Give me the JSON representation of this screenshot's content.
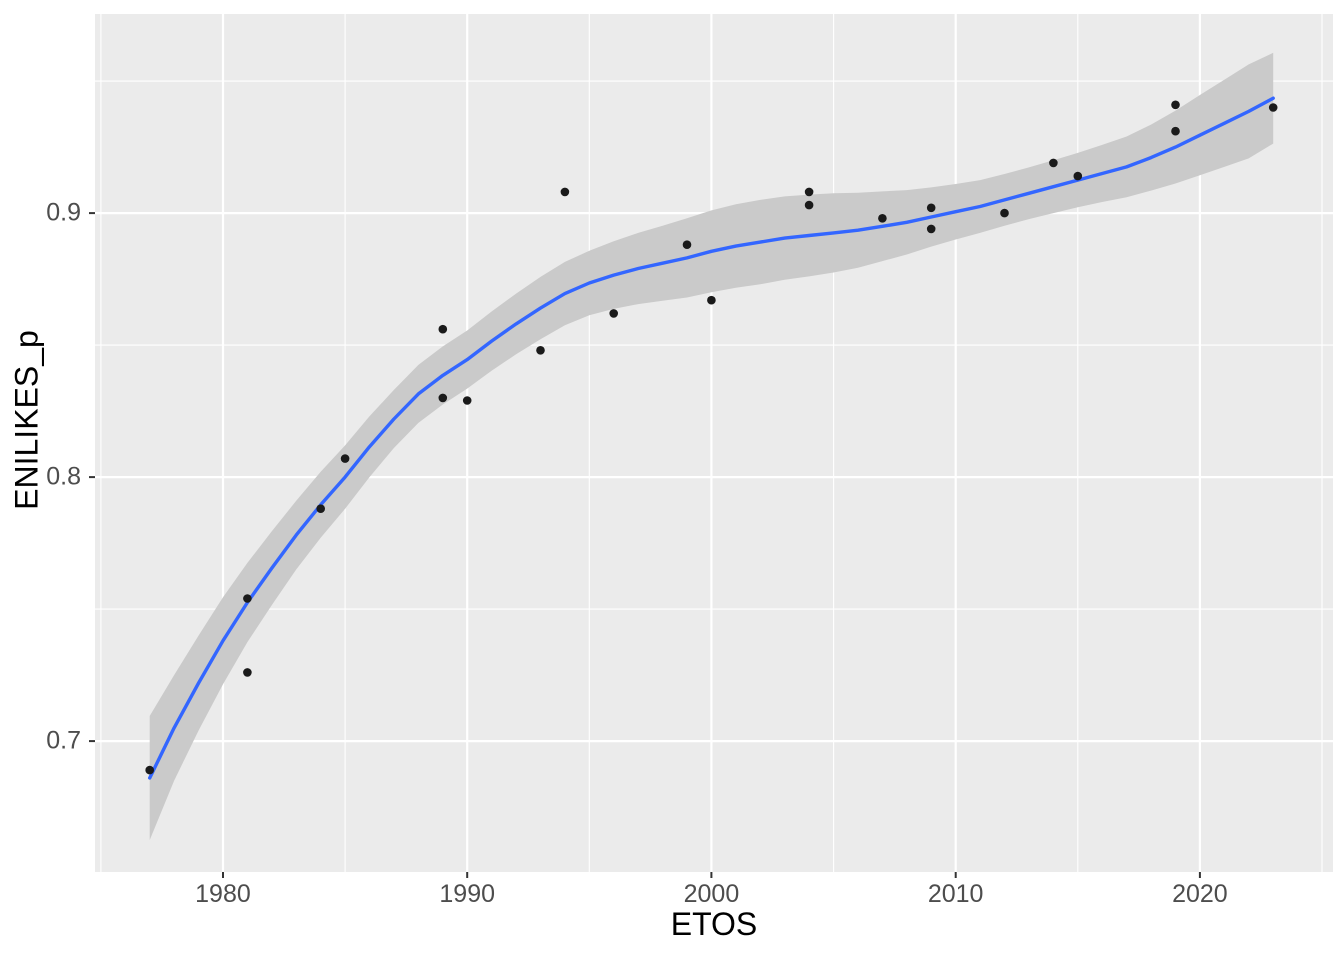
{
  "chart_data": {
    "type": "scatter",
    "title": "",
    "xlabel": "ETOS",
    "ylabel": "ENILIKES_p",
    "xlim": [
      1974.76,
      2025.45
    ],
    "ylim": [
      0.6504,
      0.9754
    ],
    "grid": true,
    "legend": false,
    "x_ticks": [
      1980,
      1990,
      2000,
      2010,
      2020
    ],
    "x_tick_labels": [
      "1980",
      "1990",
      "2000",
      "2010",
      "2020"
    ],
    "y_ticks": [
      0.7,
      0.8,
      0.9
    ],
    "y_tick_labels": [
      "0.7",
      "0.8",
      "0.9"
    ],
    "x_minor_gridlines": [
      1975,
      1985,
      1995,
      2005,
      2015,
      2025
    ],
    "y_minor_gridlines": [
      0.75,
      0.85,
      0.95
    ],
    "points": [
      [
        1977,
        0.689
      ],
      [
        1981,
        0.726
      ],
      [
        1981,
        0.754
      ],
      [
        1984,
        0.788
      ],
      [
        1985,
        0.807
      ],
      [
        1989,
        0.83
      ],
      [
        1989,
        0.856
      ],
      [
        1990,
        0.829
      ],
      [
        1993,
        0.848
      ],
      [
        1994,
        0.908
      ],
      [
        1996,
        0.862
      ],
      [
        1999,
        0.888
      ],
      [
        2000,
        0.867
      ],
      [
        2004,
        0.903
      ],
      [
        2004,
        0.908
      ],
      [
        2007,
        0.898
      ],
      [
        2009,
        0.894
      ],
      [
        2009,
        0.902
      ],
      [
        2012,
        0.9
      ],
      [
        2014,
        0.919
      ],
      [
        2015,
        0.914
      ],
      [
        2019,
        0.931
      ],
      [
        2019,
        0.941
      ],
      [
        2023,
        0.94
      ]
    ],
    "smooth_line": {
      "x": [
        1977,
        1978,
        1979,
        1980,
        1981,
        1982,
        1983,
        1984,
        1985,
        1986,
        1987,
        1988,
        1989,
        1990,
        1991,
        1992,
        1993,
        1994,
        1995,
        1996,
        1997,
        1998,
        1999,
        2000,
        2001,
        2002,
        2003,
        2004,
        2005,
        2006,
        2007,
        2008,
        2009,
        2010,
        2011,
        2012,
        2013,
        2014,
        2015,
        2016,
        2017,
        2018,
        2019,
        2020,
        2021,
        2022,
        2023
      ],
      "y": [
        0.686,
        0.705,
        0.722,
        0.738,
        0.7525,
        0.7655,
        0.778,
        0.7895,
        0.8,
        0.8115,
        0.822,
        0.8315,
        0.8385,
        0.8445,
        0.8515,
        0.858,
        0.864,
        0.8695,
        0.8735,
        0.8765,
        0.879,
        0.881,
        0.883,
        0.8855,
        0.8875,
        0.889,
        0.8905,
        0.8915,
        0.8925,
        0.8935,
        0.895,
        0.8965,
        0.8985,
        0.9005,
        0.9025,
        0.905,
        0.9075,
        0.91,
        0.9125,
        0.915,
        0.9175,
        0.921,
        0.925,
        0.9295,
        0.934,
        0.9385,
        0.9435
      ]
    },
    "confidence_ribbon": {
      "x": [
        1977,
        1978,
        1979,
        1980,
        1981,
        1982,
        1983,
        1984,
        1985,
        1986,
        1987,
        1988,
        1989,
        1990,
        1991,
        1992,
        1993,
        1994,
        1995,
        1996,
        1997,
        1998,
        1999,
        2000,
        2001,
        2002,
        2003,
        2004,
        2005,
        2006,
        2007,
        2008,
        2009,
        2010,
        2011,
        2012,
        2013,
        2014,
        2015,
        2016,
        2017,
        2018,
        2019,
        2020,
        2021,
        2022,
        2023
      ],
      "upper": [
        0.7095,
        0.725,
        0.74,
        0.7545,
        0.7675,
        0.7795,
        0.791,
        0.802,
        0.812,
        0.823,
        0.833,
        0.8425,
        0.8495,
        0.8555,
        0.8627,
        0.8695,
        0.8758,
        0.8815,
        0.8857,
        0.8893,
        0.8925,
        0.8952,
        0.898,
        0.901,
        0.9033,
        0.905,
        0.9063,
        0.907,
        0.9075,
        0.9077,
        0.9082,
        0.9087,
        0.9097,
        0.911,
        0.9125,
        0.9148,
        0.9173,
        0.92,
        0.9228,
        0.9258,
        0.929,
        0.9335,
        0.9388,
        0.9447,
        0.9505,
        0.9563,
        0.9607
      ],
      "lower": [
        0.6625,
        0.685,
        0.704,
        0.7215,
        0.7375,
        0.7515,
        0.765,
        0.777,
        0.788,
        0.8,
        0.811,
        0.8205,
        0.8275,
        0.8335,
        0.8403,
        0.8465,
        0.8522,
        0.8575,
        0.8613,
        0.8637,
        0.8655,
        0.8668,
        0.868,
        0.87,
        0.8717,
        0.873,
        0.8747,
        0.876,
        0.8775,
        0.8793,
        0.8818,
        0.8843,
        0.8873,
        0.89,
        0.8925,
        0.8952,
        0.8977,
        0.9,
        0.9022,
        0.9042,
        0.906,
        0.9085,
        0.9112,
        0.9143,
        0.9175,
        0.9207,
        0.9263
      ]
    },
    "colors": {
      "panel_background": "#EBEBEB",
      "grid_major": "#FFFFFF",
      "grid_minor": "#FFFFFF",
      "smooth_line": "#3366FF",
      "ribbon": "#CACACA",
      "points": "#1A1A1A",
      "tick_text": "#4D4D4D",
      "axis_title": "#000000",
      "tick_mark": "#333333"
    }
  }
}
